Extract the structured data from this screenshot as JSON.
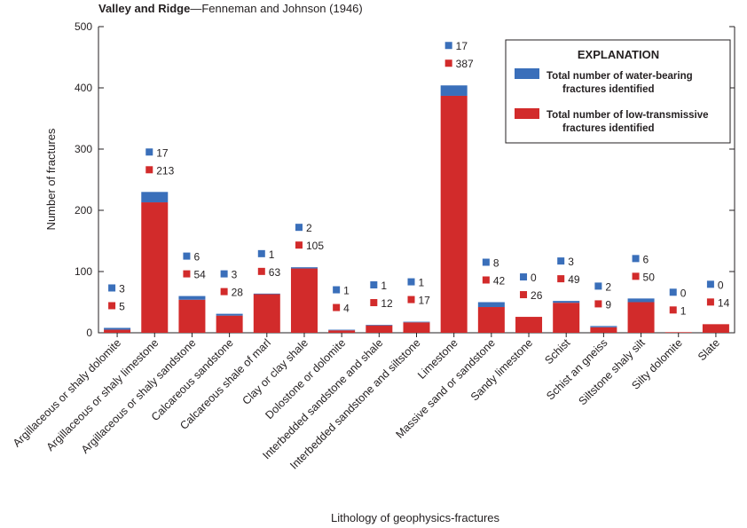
{
  "chart_data": {
    "type": "bar",
    "stacked": true,
    "title_bold": "Valley and Ridge",
    "title_rest": "—Fenneman and Johnson (1946)",
    "xlabel": "Lithology of geophysics-fractures",
    "ylabel": "Number of fractures",
    "ylim": [
      0,
      500
    ],
    "yticks": [
      0,
      100,
      200,
      300,
      400,
      500
    ],
    "categories": [
      "Argillaceous or shaly dolomite",
      "Argillaceous or shaly limestone",
      "Argillaceous or shaly sandstone",
      "Calcareous sandstone",
      "Calcareous shale of marl",
      "Clay or clay shale",
      "Dolostone or dolomite",
      "Interbedded sandstone and shale",
      "Interbedded sandstone and siltstone",
      "Limestone",
      "Massive sand or sandstone",
      "Sandy limestone",
      "Schist",
      "Schist an gneiss",
      "Siltstone shaly silt",
      "Silty dolomite",
      "Slate"
    ],
    "series": [
      {
        "name": "Total number of low-transmissive fractures identified",
        "color": "#d22b2b",
        "values": [
          5,
          213,
          54,
          28,
          63,
          105,
          4,
          12,
          17,
          387,
          42,
          26,
          49,
          9,
          50,
          1,
          14
        ]
      },
      {
        "name": "Total number of water-bearing fractures identified",
        "color": "#3a6fba",
        "values": [
          3,
          17,
          6,
          3,
          1,
          2,
          1,
          1,
          1,
          17,
          8,
          0,
          3,
          2,
          6,
          0,
          0
        ]
      }
    ],
    "legend": {
      "title": "EXPLANATION",
      "placement": "top-right",
      "entries": [
        {
          "line1": "Total number of water-bearing",
          "line2": "fractures identified",
          "color": "#3a6fba"
        },
        {
          "line1": "Total number of low-transmissive",
          "line2": "fractures identified",
          "color": "#d22b2b"
        }
      ]
    },
    "grid": false
  }
}
